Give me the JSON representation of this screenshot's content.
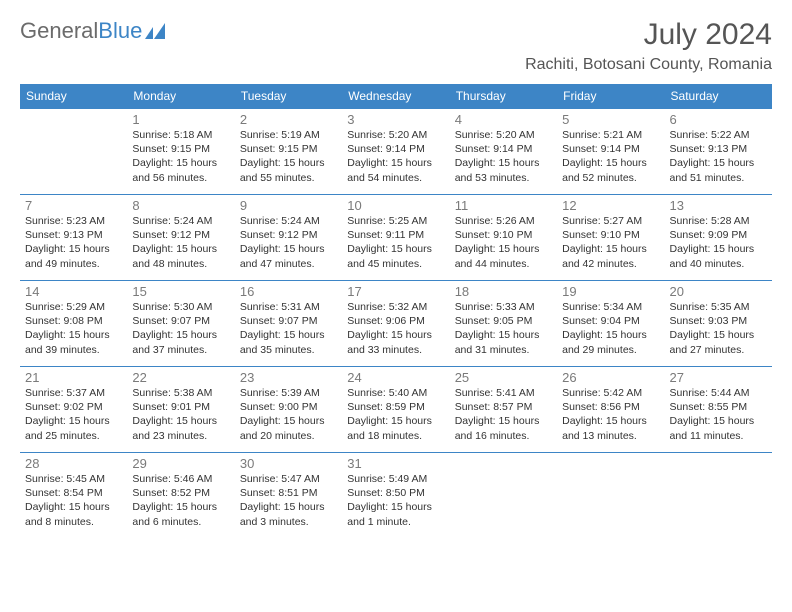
{
  "brand": {
    "part1": "General",
    "part2": "Blue"
  },
  "title": "July 2024",
  "location": "Rachiti, Botosani County, Romania",
  "colors": {
    "header_bg": "#3d85c6",
    "header_text": "#ffffff",
    "border": "#3d85c6",
    "daynum": "#7a7a7a",
    "body_text": "#333333",
    "logo_gray": "#6b6b6b",
    "logo_blue": "#3d85c6"
  },
  "weekdays": [
    "Sunday",
    "Monday",
    "Tuesday",
    "Wednesday",
    "Thursday",
    "Friday",
    "Saturday"
  ],
  "start_offset": 1,
  "days": [
    {
      "n": 1,
      "sunrise": "5:18 AM",
      "sunset": "9:15 PM",
      "daylight": "15 hours and 56 minutes."
    },
    {
      "n": 2,
      "sunrise": "5:19 AM",
      "sunset": "9:15 PM",
      "daylight": "15 hours and 55 minutes."
    },
    {
      "n": 3,
      "sunrise": "5:20 AM",
      "sunset": "9:14 PM",
      "daylight": "15 hours and 54 minutes."
    },
    {
      "n": 4,
      "sunrise": "5:20 AM",
      "sunset": "9:14 PM",
      "daylight": "15 hours and 53 minutes."
    },
    {
      "n": 5,
      "sunrise": "5:21 AM",
      "sunset": "9:14 PM",
      "daylight": "15 hours and 52 minutes."
    },
    {
      "n": 6,
      "sunrise": "5:22 AM",
      "sunset": "9:13 PM",
      "daylight": "15 hours and 51 minutes."
    },
    {
      "n": 7,
      "sunrise": "5:23 AM",
      "sunset": "9:13 PM",
      "daylight": "15 hours and 49 minutes."
    },
    {
      "n": 8,
      "sunrise": "5:24 AM",
      "sunset": "9:12 PM",
      "daylight": "15 hours and 48 minutes."
    },
    {
      "n": 9,
      "sunrise": "5:24 AM",
      "sunset": "9:12 PM",
      "daylight": "15 hours and 47 minutes."
    },
    {
      "n": 10,
      "sunrise": "5:25 AM",
      "sunset": "9:11 PM",
      "daylight": "15 hours and 45 minutes."
    },
    {
      "n": 11,
      "sunrise": "5:26 AM",
      "sunset": "9:10 PM",
      "daylight": "15 hours and 44 minutes."
    },
    {
      "n": 12,
      "sunrise": "5:27 AM",
      "sunset": "9:10 PM",
      "daylight": "15 hours and 42 minutes."
    },
    {
      "n": 13,
      "sunrise": "5:28 AM",
      "sunset": "9:09 PM",
      "daylight": "15 hours and 40 minutes."
    },
    {
      "n": 14,
      "sunrise": "5:29 AM",
      "sunset": "9:08 PM",
      "daylight": "15 hours and 39 minutes."
    },
    {
      "n": 15,
      "sunrise": "5:30 AM",
      "sunset": "9:07 PM",
      "daylight": "15 hours and 37 minutes."
    },
    {
      "n": 16,
      "sunrise": "5:31 AM",
      "sunset": "9:07 PM",
      "daylight": "15 hours and 35 minutes."
    },
    {
      "n": 17,
      "sunrise": "5:32 AM",
      "sunset": "9:06 PM",
      "daylight": "15 hours and 33 minutes."
    },
    {
      "n": 18,
      "sunrise": "5:33 AM",
      "sunset": "9:05 PM",
      "daylight": "15 hours and 31 minutes."
    },
    {
      "n": 19,
      "sunrise": "5:34 AM",
      "sunset": "9:04 PM",
      "daylight": "15 hours and 29 minutes."
    },
    {
      "n": 20,
      "sunrise": "5:35 AM",
      "sunset": "9:03 PM",
      "daylight": "15 hours and 27 minutes."
    },
    {
      "n": 21,
      "sunrise": "5:37 AM",
      "sunset": "9:02 PM",
      "daylight": "15 hours and 25 minutes."
    },
    {
      "n": 22,
      "sunrise": "5:38 AM",
      "sunset": "9:01 PM",
      "daylight": "15 hours and 23 minutes."
    },
    {
      "n": 23,
      "sunrise": "5:39 AM",
      "sunset": "9:00 PM",
      "daylight": "15 hours and 20 minutes."
    },
    {
      "n": 24,
      "sunrise": "5:40 AM",
      "sunset": "8:59 PM",
      "daylight": "15 hours and 18 minutes."
    },
    {
      "n": 25,
      "sunrise": "5:41 AM",
      "sunset": "8:57 PM",
      "daylight": "15 hours and 16 minutes."
    },
    {
      "n": 26,
      "sunrise": "5:42 AM",
      "sunset": "8:56 PM",
      "daylight": "15 hours and 13 minutes."
    },
    {
      "n": 27,
      "sunrise": "5:44 AM",
      "sunset": "8:55 PM",
      "daylight": "15 hours and 11 minutes."
    },
    {
      "n": 28,
      "sunrise": "5:45 AM",
      "sunset": "8:54 PM",
      "daylight": "15 hours and 8 minutes."
    },
    {
      "n": 29,
      "sunrise": "5:46 AM",
      "sunset": "8:52 PM",
      "daylight": "15 hours and 6 minutes."
    },
    {
      "n": 30,
      "sunrise": "5:47 AM",
      "sunset": "8:51 PM",
      "daylight": "15 hours and 3 minutes."
    },
    {
      "n": 31,
      "sunrise": "5:49 AM",
      "sunset": "8:50 PM",
      "daylight": "15 hours and 1 minute."
    }
  ],
  "labels": {
    "sunrise": "Sunrise:",
    "sunset": "Sunset:",
    "daylight": "Daylight:"
  }
}
